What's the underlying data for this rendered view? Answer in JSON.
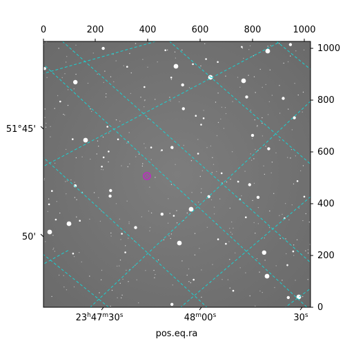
{
  "image": {
    "description_colors": {
      "sky": "#777777",
      "grid": "#19d3d3",
      "marker": "#c026c6"
    },
    "pixel_axis_top": {
      "ticks": [
        "0",
        "200",
        "400",
        "600",
        "800",
        "1000"
      ]
    },
    "pixel_axis_right": {
      "ticks": [
        "0",
        "200",
        "400",
        "600",
        "800",
        "1000"
      ]
    },
    "dec_axis_left": {
      "ticks": [
        "51°45'",
        "50'"
      ]
    },
    "ra_axis_bottom": {
      "ticks": [
        "23h47m30s",
        "48m00s",
        "30s"
      ],
      "ticks_display": [
        {
          "main": "23",
          "s1": "h",
          "m": "47",
          "s2": "m",
          "sec": "30",
          "s3": "s"
        },
        {
          "main": "48",
          "s1": "m",
          "m": "00",
          "s2": "s",
          "sec": "",
          "s3": ""
        },
        {
          "main": "30",
          "s1": "s",
          "m": "",
          "s2": "",
          "sec": "",
          "s3": ""
        }
      ],
      "label": "pos.eq.ra"
    },
    "target": {
      "shape": "circle",
      "color": "#c026c6"
    }
  }
}
